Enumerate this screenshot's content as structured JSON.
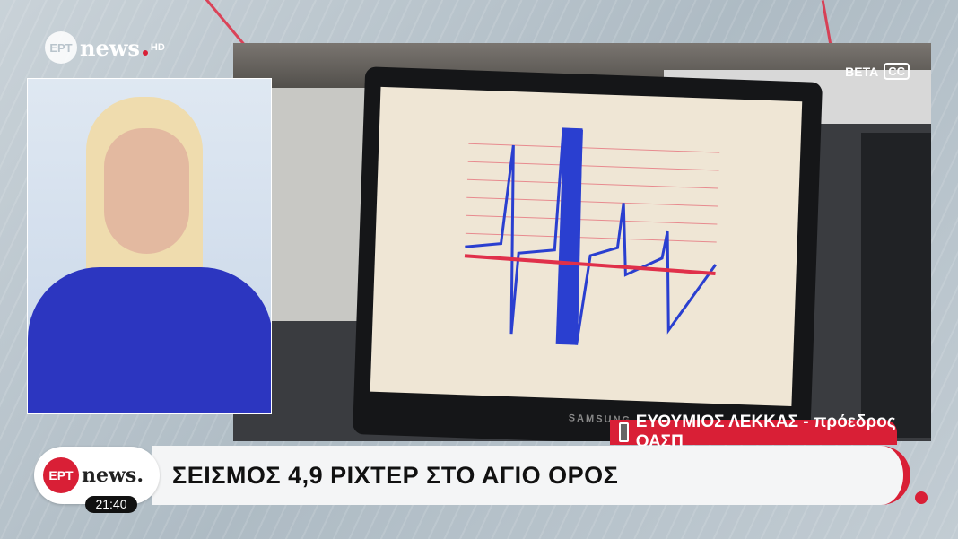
{
  "channel": {
    "logo_top": {
      "ert": "ΕΡΤ",
      "news": "news",
      "hd": "HD"
    },
    "logo_bottom": {
      "ert": "ΕΡΤ",
      "news": "news."
    }
  },
  "clock": "21:40",
  "video": {
    "badges": {
      "beta": "BETA",
      "cc": "CC"
    },
    "monitor_brand": "SAMSUNG"
  },
  "lower_third": {
    "speaker": "ΕΥΘΥΜΙΟΣ ΛΕΚΚΑΣ - πρόεδρος ΟΑΣΠ",
    "headline": "ΣΕΙΣΜΟΣ 4,9 ΡΙΧΤΕΡ ΣΤΟ ΑΓΙΟ ΟΡΟΣ"
  },
  "colors": {
    "brand_red": "#d91f36",
    "seismo_blue": "#2a3fd0",
    "seismo_red": "#e0304a"
  }
}
